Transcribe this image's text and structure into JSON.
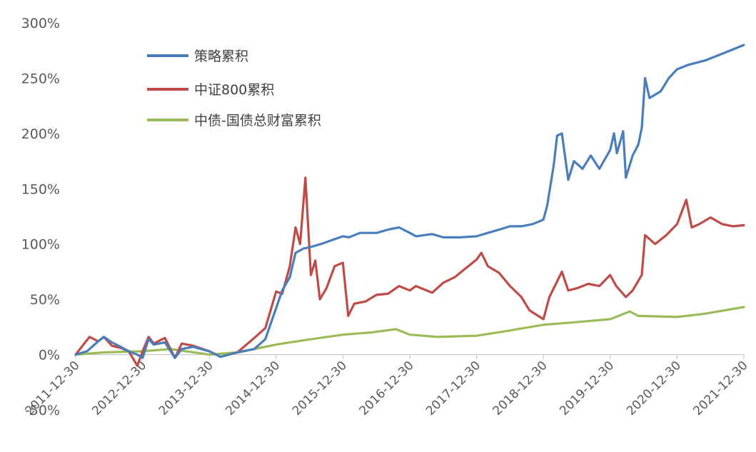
{
  "chart_data": {
    "type": "line",
    "title": "",
    "xlabel": "",
    "ylabel": "",
    "ylim": [
      -50,
      300
    ],
    "yticks": [
      -50,
      0,
      50,
      100,
      150,
      200,
      250,
      300
    ],
    "ytick_labels": [
      "-50%",
      "0%",
      "50%",
      "100%",
      "150%",
      "200%",
      "250%",
      "300%"
    ],
    "xlim": [
      "2011-12-30",
      "2021-12-30"
    ],
    "xticks": [
      "2011-12-30",
      "2012-12-30",
      "2013-12-30",
      "2014-12-30",
      "2015-12-30",
      "2016-12-30",
      "2017-12-30",
      "2018-12-30",
      "2019-12-30",
      "2020-12-30",
      "2021-12-30"
    ],
    "grid": false,
    "legend_position": "top-left",
    "series": [
      {
        "name": "策略累积",
        "color": "#4a7ebb",
        "points": [
          [
            "2011-12-30",
            0
          ],
          [
            "2012-03-01",
            3
          ],
          [
            "2012-05-01",
            12
          ],
          [
            "2012-06-01",
            16
          ],
          [
            "2012-07-15",
            11
          ],
          [
            "2012-09-01",
            7
          ],
          [
            "2012-10-15",
            3
          ],
          [
            "2012-12-01",
            0
          ],
          [
            "2012-12-30",
            -3
          ],
          [
            "2013-02-01",
            14
          ],
          [
            "2013-03-01",
            9
          ],
          [
            "2013-05-01",
            11
          ],
          [
            "2013-06-25",
            -3
          ],
          [
            "2013-08-01",
            5
          ],
          [
            "2013-10-01",
            7
          ],
          [
            "2013-12-30",
            3
          ],
          [
            "2014-03-01",
            -2
          ],
          [
            "2014-06-01",
            2
          ],
          [
            "2014-09-01",
            5
          ],
          [
            "2014-11-01",
            14
          ],
          [
            "2014-12-30",
            42
          ],
          [
            "2015-02-01",
            58
          ],
          [
            "2015-03-15",
            70
          ],
          [
            "2015-04-15",
            92
          ],
          [
            "2015-05-30",
            96
          ],
          [
            "2015-07-01",
            97
          ],
          [
            "2015-09-01",
            100
          ],
          [
            "2015-12-30",
            107
          ],
          [
            "2016-02-01",
            106
          ],
          [
            "2016-04-01",
            110
          ],
          [
            "2016-07-01",
            110
          ],
          [
            "2016-09-01",
            113
          ],
          [
            "2016-11-01",
            115
          ],
          [
            "2016-12-30",
            110
          ],
          [
            "2017-02-01",
            107
          ],
          [
            "2017-05-01",
            109
          ],
          [
            "2017-07-01",
            106
          ],
          [
            "2017-10-01",
            106
          ],
          [
            "2017-12-30",
            107
          ],
          [
            "2018-03-01",
            110
          ],
          [
            "2018-05-01",
            113
          ],
          [
            "2018-07-01",
            116
          ],
          [
            "2018-09-01",
            116
          ],
          [
            "2018-11-01",
            118
          ],
          [
            "2018-12-30",
            122
          ],
          [
            "2019-01-20",
            135
          ],
          [
            "2019-02-25",
            172
          ],
          [
            "2019-03-15",
            198
          ],
          [
            "2019-04-10",
            200
          ],
          [
            "2019-05-15",
            158
          ],
          [
            "2019-06-15",
            175
          ],
          [
            "2019-08-01",
            168
          ],
          [
            "2019-09-15",
            180
          ],
          [
            "2019-11-01",
            168
          ],
          [
            "2019-12-30",
            185
          ],
          [
            "2020-01-20",
            200
          ],
          [
            "2020-02-05",
            182
          ],
          [
            "2020-03-10",
            202
          ],
          [
            "2020-03-25",
            160
          ],
          [
            "2020-05-01",
            180
          ],
          [
            "2020-06-01",
            190
          ],
          [
            "2020-06-20",
            205
          ],
          [
            "2020-07-08",
            250
          ],
          [
            "2020-08-01",
            232
          ],
          [
            "2020-10-01",
            238
          ],
          [
            "2020-11-15",
            250
          ],
          [
            "2020-12-30",
            258
          ],
          [
            "2021-03-01",
            262
          ],
          [
            "2021-06-01",
            266
          ],
          [
            "2021-09-01",
            272
          ],
          [
            "2021-12-30",
            280
          ]
        ]
      },
      {
        "name": "中证800累积",
        "color": "#be4b48",
        "points": [
          [
            "2011-12-30",
            0
          ],
          [
            "2012-02-15",
            10
          ],
          [
            "2012-03-15",
            16
          ],
          [
            "2012-05-01",
            12
          ],
          [
            "2012-06-01",
            16
          ],
          [
            "2012-07-15",
            8
          ],
          [
            "2012-09-01",
            6
          ],
          [
            "2012-10-15",
            3
          ],
          [
            "2012-12-01",
            -10
          ],
          [
            "2012-12-30",
            3
          ],
          [
            "2013-02-01",
            16
          ],
          [
            "2013-03-01",
            10
          ],
          [
            "2013-05-01",
            15
          ],
          [
            "2013-06-25",
            -3
          ],
          [
            "2013-08-01",
            10
          ],
          [
            "2013-10-01",
            8
          ],
          [
            "2013-12-30",
            3
          ],
          [
            "2014-03-01",
            -2
          ],
          [
            "2014-06-01",
            2
          ],
          [
            "2014-09-01",
            15
          ],
          [
            "2014-11-01",
            24
          ],
          [
            "2014-12-30",
            57
          ],
          [
            "2015-02-01",
            55
          ],
          [
            "2015-03-15",
            80
          ],
          [
            "2015-04-15",
            115
          ],
          [
            "2015-05-10",
            100
          ],
          [
            "2015-06-08",
            160
          ],
          [
            "2015-07-08",
            72
          ],
          [
            "2015-08-01",
            85
          ],
          [
            "2015-08-26",
            50
          ],
          [
            "2015-10-01",
            60
          ],
          [
            "2015-11-15",
            80
          ],
          [
            "2015-12-30",
            83
          ],
          [
            "2016-01-28",
            35
          ],
          [
            "2016-03-01",
            46
          ],
          [
            "2016-05-01",
            48
          ],
          [
            "2016-07-01",
            54
          ],
          [
            "2016-09-01",
            55
          ],
          [
            "2016-11-01",
            62
          ],
          [
            "2016-12-30",
            58
          ],
          [
            "2017-02-01",
            62
          ],
          [
            "2017-05-01",
            56
          ],
          [
            "2017-07-01",
            65
          ],
          [
            "2017-09-01",
            70
          ],
          [
            "2017-11-15",
            80
          ],
          [
            "2017-12-30",
            86
          ],
          [
            "2018-01-25",
            92
          ],
          [
            "2018-03-01",
            80
          ],
          [
            "2018-05-01",
            74
          ],
          [
            "2018-07-01",
            62
          ],
          [
            "2018-09-01",
            52
          ],
          [
            "2018-10-15",
            40
          ],
          [
            "2018-12-30",
            32
          ],
          [
            "2019-02-01",
            52
          ],
          [
            "2019-04-10",
            75
          ],
          [
            "2019-05-15",
            58
          ],
          [
            "2019-07-01",
            60
          ],
          [
            "2019-09-01",
            64
          ],
          [
            "2019-11-01",
            62
          ],
          [
            "2019-12-30",
            72
          ],
          [
            "2020-02-01",
            62
          ],
          [
            "2020-03-25",
            52
          ],
          [
            "2020-05-01",
            58
          ],
          [
            "2020-06-20",
            72
          ],
          [
            "2020-07-08",
            108
          ],
          [
            "2020-09-01",
            100
          ],
          [
            "2020-11-01",
            108
          ],
          [
            "2020-12-30",
            118
          ],
          [
            "2021-02-18",
            140
          ],
          [
            "2021-03-20",
            115
          ],
          [
            "2021-05-01",
            118
          ],
          [
            "2021-07-01",
            124
          ],
          [
            "2021-09-01",
            118
          ],
          [
            "2021-11-01",
            116
          ],
          [
            "2021-12-30",
            117
          ]
        ]
      },
      {
        "name": "中债-国债总财富累积",
        "color": "#9bbb59",
        "points": [
          [
            "2011-12-30",
            0
          ],
          [
            "2012-06-01",
            2
          ],
          [
            "2012-12-30",
            3
          ],
          [
            "2013-06-01",
            5
          ],
          [
            "2013-12-30",
            0
          ],
          [
            "2014-06-01",
            2
          ],
          [
            "2014-12-30",
            9
          ],
          [
            "2015-06-01",
            13
          ],
          [
            "2015-12-30",
            18
          ],
          [
            "2016-06-01",
            20
          ],
          [
            "2016-10-15",
            23
          ],
          [
            "2016-12-30",
            18
          ],
          [
            "2017-06-01",
            16
          ],
          [
            "2017-12-30",
            17
          ],
          [
            "2018-06-01",
            21
          ],
          [
            "2018-12-30",
            27
          ],
          [
            "2019-06-01",
            29
          ],
          [
            "2019-12-30",
            32
          ],
          [
            "2020-04-15",
            39
          ],
          [
            "2020-06-01",
            35
          ],
          [
            "2020-12-30",
            34
          ],
          [
            "2021-06-01",
            37
          ],
          [
            "2021-12-30",
            43
          ]
        ]
      }
    ]
  }
}
